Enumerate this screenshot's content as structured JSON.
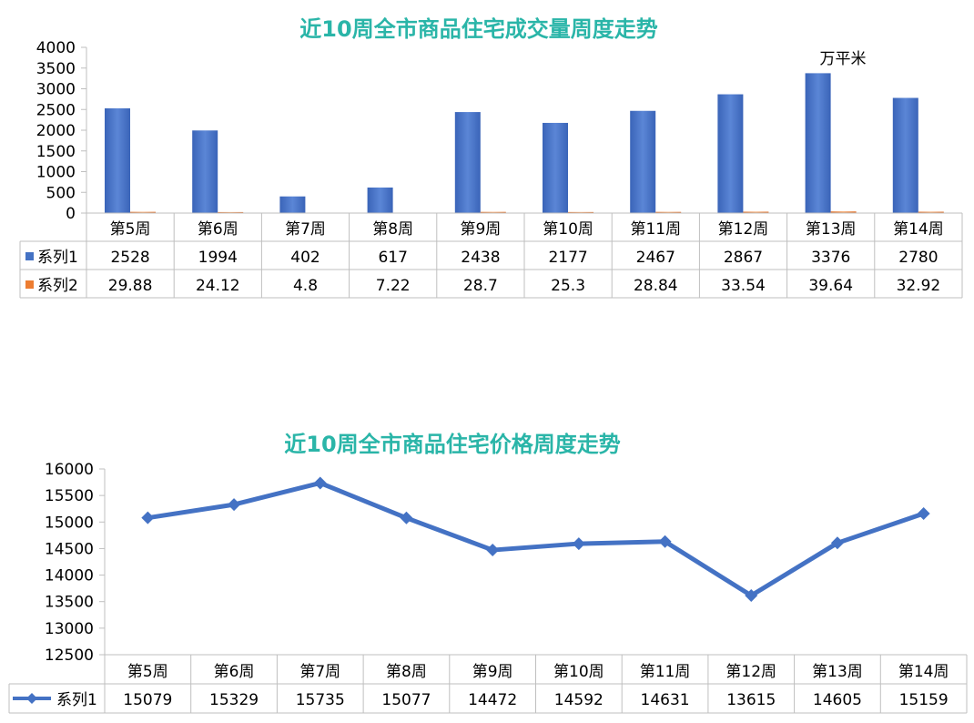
{
  "chart_data": [
    {
      "type": "bar",
      "title": "近10周全市商品住宅成交量周度走势",
      "unit_label": "万平米",
      "categories": [
        "第5周",
        "第6周",
        "第7周",
        "第8周",
        "第9周",
        "第10周",
        "第11周",
        "第12周",
        "第13周",
        "第14周"
      ],
      "series": [
        {
          "name": "系列1",
          "color": "#4472c4",
          "values": [
            2528,
            1994,
            402,
            617,
            2438,
            2177,
            2467,
            2867,
            3376,
            2780
          ]
        },
        {
          "name": "系列2",
          "color": "#ed7d31",
          "values": [
            "29.88",
            "24.12",
            "4.8",
            "7.22",
            "28.7",
            "25.3",
            "28.84",
            "33.54",
            "39.64",
            "32.92"
          ]
        }
      ],
      "ylim": [
        0,
        4000
      ],
      "yticks": [
        "0",
        "500",
        "1000",
        "1500",
        "2000",
        "2500",
        "3000",
        "3500",
        "4000"
      ],
      "grid": false,
      "legend": "data-table"
    },
    {
      "type": "line",
      "title": "近10周全市商品住宅价格周度走势",
      "categories": [
        "第5周",
        "第6周",
        "第7周",
        "第8周",
        "第9周",
        "第10周",
        "第11周",
        "第12周",
        "第13周",
        "第14周"
      ],
      "series": [
        {
          "name": "系列1",
          "color": "#4472c4",
          "values": [
            15079,
            15329,
            15735,
            15077,
            14472,
            14592,
            14631,
            13615,
            14605,
            15159
          ]
        }
      ],
      "ylim": [
        12500,
        16000
      ],
      "yticks": [
        "12500",
        "13000",
        "13500",
        "14000",
        "14500",
        "15000",
        "15500",
        "16000"
      ],
      "grid": false,
      "legend": "data-table"
    }
  ]
}
